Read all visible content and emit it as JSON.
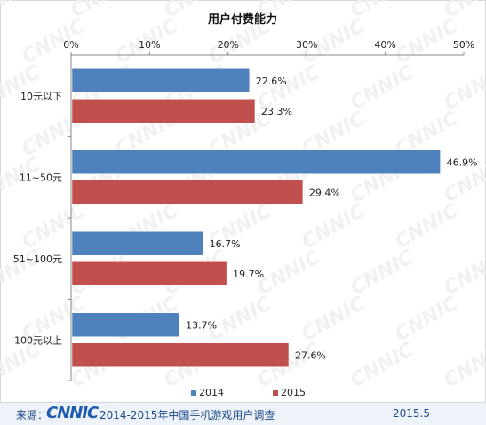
{
  "chart_data": {
    "type": "bar",
    "orientation": "horizontal",
    "title": "用户付费能力",
    "categories": [
      "10元以下",
      "11~50元",
      "51~100元",
      "100元以上"
    ],
    "series": [
      {
        "name": "2014",
        "values": [
          22.6,
          46.9,
          16.7,
          13.7
        ],
        "color": "#4f81bd"
      },
      {
        "name": "2015",
        "values": [
          23.3,
          29.4,
          19.7,
          27.6
        ],
        "color": "#c0504d"
      }
    ],
    "data_labels": [
      [
        "22.6%",
        "46.9%",
        "16.7%",
        "13.7%"
      ],
      [
        "23.3%",
        "29.4%",
        "19.7%",
        "27.6%"
      ]
    ],
    "xlim": [
      0,
      50
    ],
    "xticks": [
      "0%",
      "10%",
      "20%",
      "30%",
      "40%",
      "50%"
    ],
    "axis_position": "top",
    "grid": false,
    "legend_position": "bottom"
  },
  "footer": {
    "source_label": "来源：",
    "logo": "CNNIC",
    "survey": "2014-2015年中国手机游戏用户调查",
    "date": "2015.5"
  },
  "watermark": "CNNIC"
}
